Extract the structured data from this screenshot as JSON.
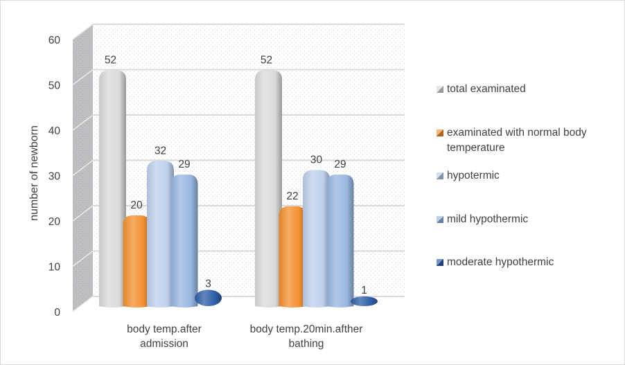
{
  "chart_data": {
    "type": "bar",
    "style": "3d-cylinder-clustered",
    "title": "",
    "xlabel": "",
    "ylabel": "number of newborn",
    "ylim": [
      0,
      60
    ],
    "yticks": [
      0,
      10,
      20,
      30,
      40,
      50,
      60
    ],
    "grid": true,
    "legend_position": "right",
    "categories": [
      "body temp.after admission",
      "body temp.20min.afther bathing"
    ],
    "category_lines": [
      [
        "body temp.after",
        "admission"
      ],
      [
        "body temp.20min.afther",
        "bathing"
      ]
    ],
    "series": [
      {
        "name": "total examinated",
        "values": [
          52,
          52
        ],
        "labels": [
          "52",
          "52"
        ],
        "color": "#d9d9d9",
        "legend_lines": [
          "total examinated"
        ]
      },
      {
        "name": "examinated with normal body temperature",
        "values": [
          20,
          22
        ],
        "labels": [
          "20",
          "22"
        ],
        "color": "#f39030",
        "legend_lines": [
          "examinated with normal body",
          "temperature"
        ]
      },
      {
        "name": "hypotermic",
        "values": [
          32,
          30
        ],
        "labels": [
          "32",
          "30"
        ],
        "color": "#bdd0ec",
        "legend_lines": [
          "hypotermic"
        ]
      },
      {
        "name": "mild hypothermic",
        "values": [
          29,
          29
        ],
        "labels": [
          "29",
          "29"
        ],
        "color": "#98b6e0",
        "legend_lines": [
          "mild hypothermic"
        ]
      },
      {
        "name": "moderate hypothermic",
        "values": [
          3,
          1
        ],
        "labels": [
          "3",
          "1"
        ],
        "color": "#2e5ea6",
        "legend_lines": [
          "moderate hypothermic"
        ]
      }
    ]
  }
}
